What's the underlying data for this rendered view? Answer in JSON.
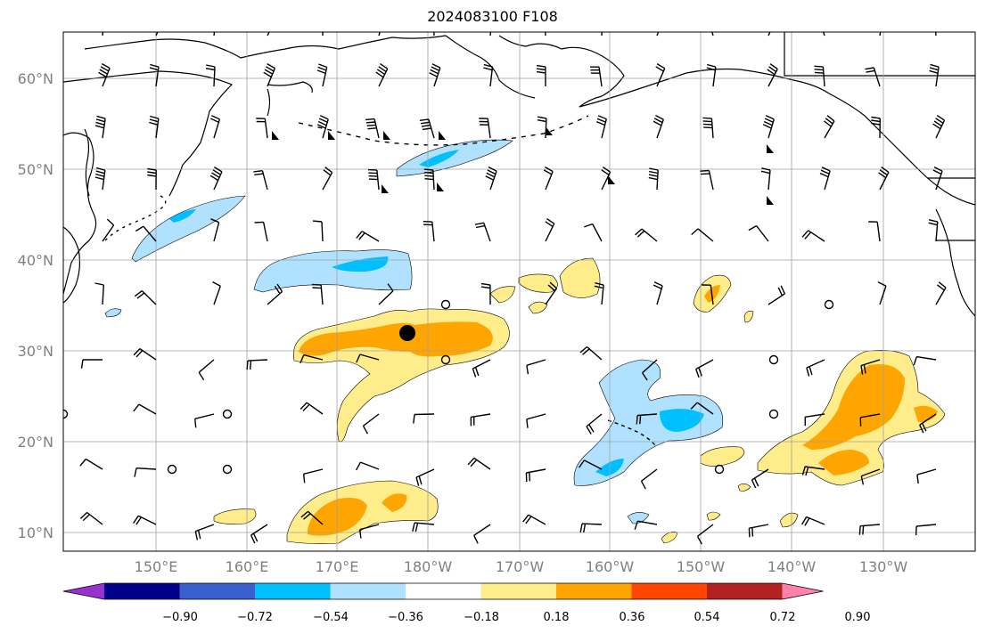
{
  "title": "2024083100 F108",
  "map": {
    "projection": "cylindrical",
    "lon_range": [
      140,
      245
    ],
    "lat_range": [
      8,
      65
    ],
    "grid": true,
    "lat_ticks": [
      "10°N",
      "20°N",
      "30°N",
      "40°N",
      "50°N",
      "60°N"
    ],
    "lon_ticks": [
      "150°E",
      "160°E",
      "170°E",
      "180°W",
      "170°W",
      "160°W",
      "150°W",
      "140°W",
      "130°W"
    ],
    "marker": {
      "lon": 178,
      "lat": 32
    },
    "colors": {
      "land_outline": "#000000",
      "grid": "#a0a0a0",
      "tick_label": "#808080"
    }
  },
  "colorbar": {
    "labels": [
      "−0.90",
      "−0.72",
      "−0.54",
      "−0.36",
      "−0.18",
      "0.18",
      "0.36",
      "0.54",
      "0.72",
      "0.90"
    ],
    "colors": [
      "#9932cc",
      "#00008b",
      "#3a5fcd",
      "#00bfff",
      "#b0e2ff",
      "#ffffff",
      "#ffec8b",
      "#ffa500",
      "#ff4500",
      "#b22222",
      "#ff82ab"
    ],
    "extend": "both"
  }
}
